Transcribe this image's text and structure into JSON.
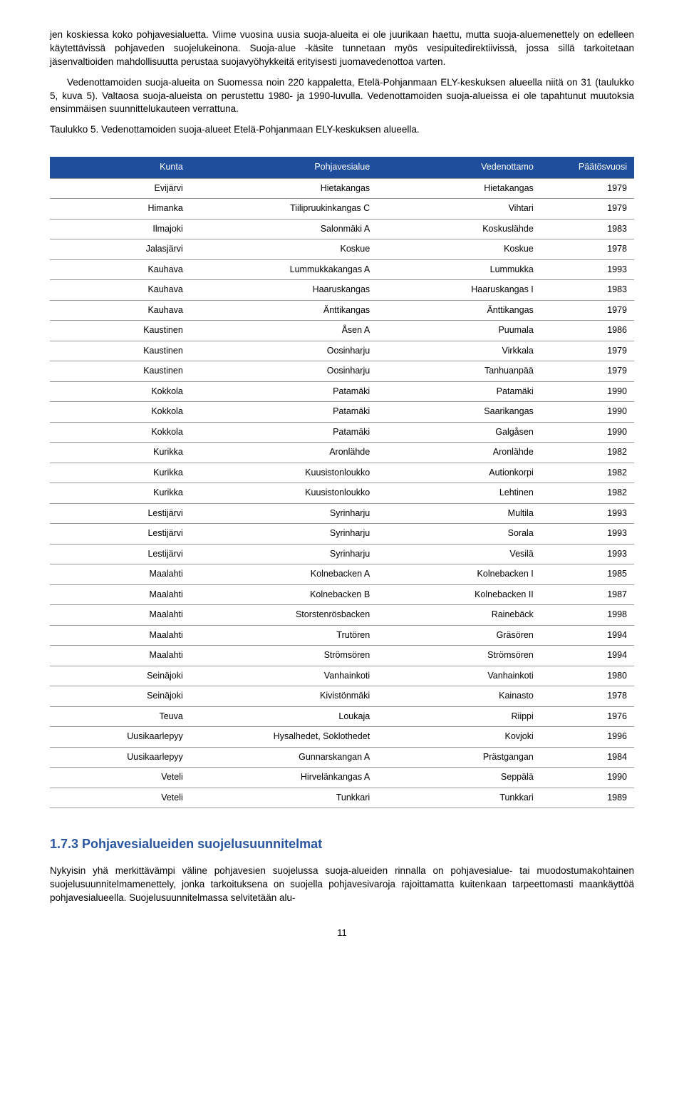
{
  "paragraphs": {
    "p1": "jen koskiessa koko pohjavesialuetta. Viime vuosina uusia suoja-alueita ei ole juurikaan haettu, mutta suoja-aluemenettely on edelleen käytettävissä pohjaveden suojelukeinona. Suoja-alue -käsite tunnetaan myös vesipuitedirektiivissä, jossa sillä tarkoitetaan jäsenvaltioiden mahdollisuutta perustaa suojavyöhykkeitä erityisesti juomavedenottoa varten.",
    "p2": "Vedenottamoiden suoja-alueita on Suomessa noin 220 kappaletta, Etelä-Pohjanmaan ELY-keskuksen alueella niitä on 31 (taulukko 5, kuva 5). Valtaosa suoja-alueista on perustettu 1980- ja 1990-luvulla. Vedenottamoiden suoja-alueissa ei ole tapahtunut muutoksia ensimmäisen suunnittelukauteen verrattuna."
  },
  "table_caption": "Taulukko 5. Vedenottamoiden suoja-alueet Etelä-Pohjanmaan ELY-keskuksen alueella.",
  "table": {
    "headers": [
      "Kunta",
      "Pohjavesialue",
      "Vedenottamo",
      "Päätösvuosi"
    ],
    "rows": [
      [
        "Evijärvi",
        "Hietakangas",
        "Hietakangas",
        "1979"
      ],
      [
        "Himanka",
        "Tiilipruukinkangas C",
        "Vihtari",
        "1979"
      ],
      [
        "Ilmajoki",
        "Salonmäki A",
        "Koskuslähde",
        "1983"
      ],
      [
        "Jalasjärvi",
        "Koskue",
        "Koskue",
        "1978"
      ],
      [
        "Kauhava",
        "Lummukkakangas A",
        "Lummukka",
        "1993"
      ],
      [
        "Kauhava",
        "Haaruskangas",
        "Haaruskangas I",
        "1983"
      ],
      [
        "Kauhava",
        "Änttikangas",
        "Änttikangas",
        "1979"
      ],
      [
        "Kaustinen",
        "Åsen A",
        "Puumala",
        "1986"
      ],
      [
        "Kaustinen",
        "Oosinharju",
        "Virkkala",
        "1979"
      ],
      [
        "Kaustinen",
        "Oosinharju",
        "Tanhuanpää",
        "1979"
      ],
      [
        "Kokkola",
        "Patamäki",
        "Patamäki",
        "1990"
      ],
      [
        "Kokkola",
        "Patamäki",
        "Saarikangas",
        "1990"
      ],
      [
        "Kokkola",
        "Patamäki",
        "Galgåsen",
        "1990"
      ],
      [
        "Kurikka",
        "Aronlähde",
        "Aronlähde",
        "1982"
      ],
      [
        "Kurikka",
        "Kuusistonloukko",
        "Autionkorpi",
        "1982"
      ],
      [
        "Kurikka",
        "Kuusistonloukko",
        "Lehtinen",
        "1982"
      ],
      [
        "Lestijärvi",
        "Syrinharju",
        "Multila",
        "1993"
      ],
      [
        "Lestijärvi",
        "Syrinharju",
        "Sorala",
        "1993"
      ],
      [
        "Lestijärvi",
        "Syrinharju",
        "Vesilä",
        "1993"
      ],
      [
        "Maalahti",
        "Kolnebacken A",
        "Kolnebacken I",
        "1985"
      ],
      [
        "Maalahti",
        "Kolnebacken B",
        "Kolnebacken II",
        "1987"
      ],
      [
        "Maalahti",
        "Storstenrösbacken",
        "Rainebäck",
        "1998"
      ],
      [
        "Maalahti",
        "Trutören",
        "Gräsören",
        "1994"
      ],
      [
        "Maalahti",
        "Strömsören",
        "Strömsören",
        "1994"
      ],
      [
        "Seinäjoki",
        "Vanhainkoti",
        "Vanhainkoti",
        "1980"
      ],
      [
        "Seinäjoki",
        "Kivistönmäki",
        "Kainasto",
        "1978"
      ],
      [
        "Teuva",
        "Loukaja",
        "Riippi",
        "1976"
      ],
      [
        "Uusikaarlepyy",
        "Hysalhedet, Soklothedet",
        "Kovjoki",
        "1996"
      ],
      [
        "Uusikaarlepyy",
        "Gunnarskangan A",
        "Prästgangan",
        "1984"
      ],
      [
        "Veteli",
        "Hirvelänkangas A",
        "Seppälä",
        "1990"
      ],
      [
        "Veteli",
        "Tunkkari",
        "Tunkkari",
        "1989"
      ]
    ],
    "col_widths": [
      "24%",
      "32%",
      "28%",
      "16%"
    ],
    "header_bg": "#1f4e9c",
    "header_color": "#ffffff",
    "border_color": "#9a9a9a"
  },
  "section_heading": "1.7.3 Pohjavesialueiden suojelusuunnitelmat",
  "closing_paragraph": "Nykyisin yhä merkittävämpi väline pohjavesien suojelussa suoja-alueiden rinnalla on pohjavesialue- tai muodostumakohtainen suojelusuunnitelmamenettely, jonka tarkoituksena on suojella pohjavesivaroja rajoittamatta kuitenkaan tarpeettomasti maankäyttöä pohjavesialueella. Suojelusuunnitelmassa selvitetään alu-",
  "page_number": "11",
  "heading_color": "#2a56a0"
}
